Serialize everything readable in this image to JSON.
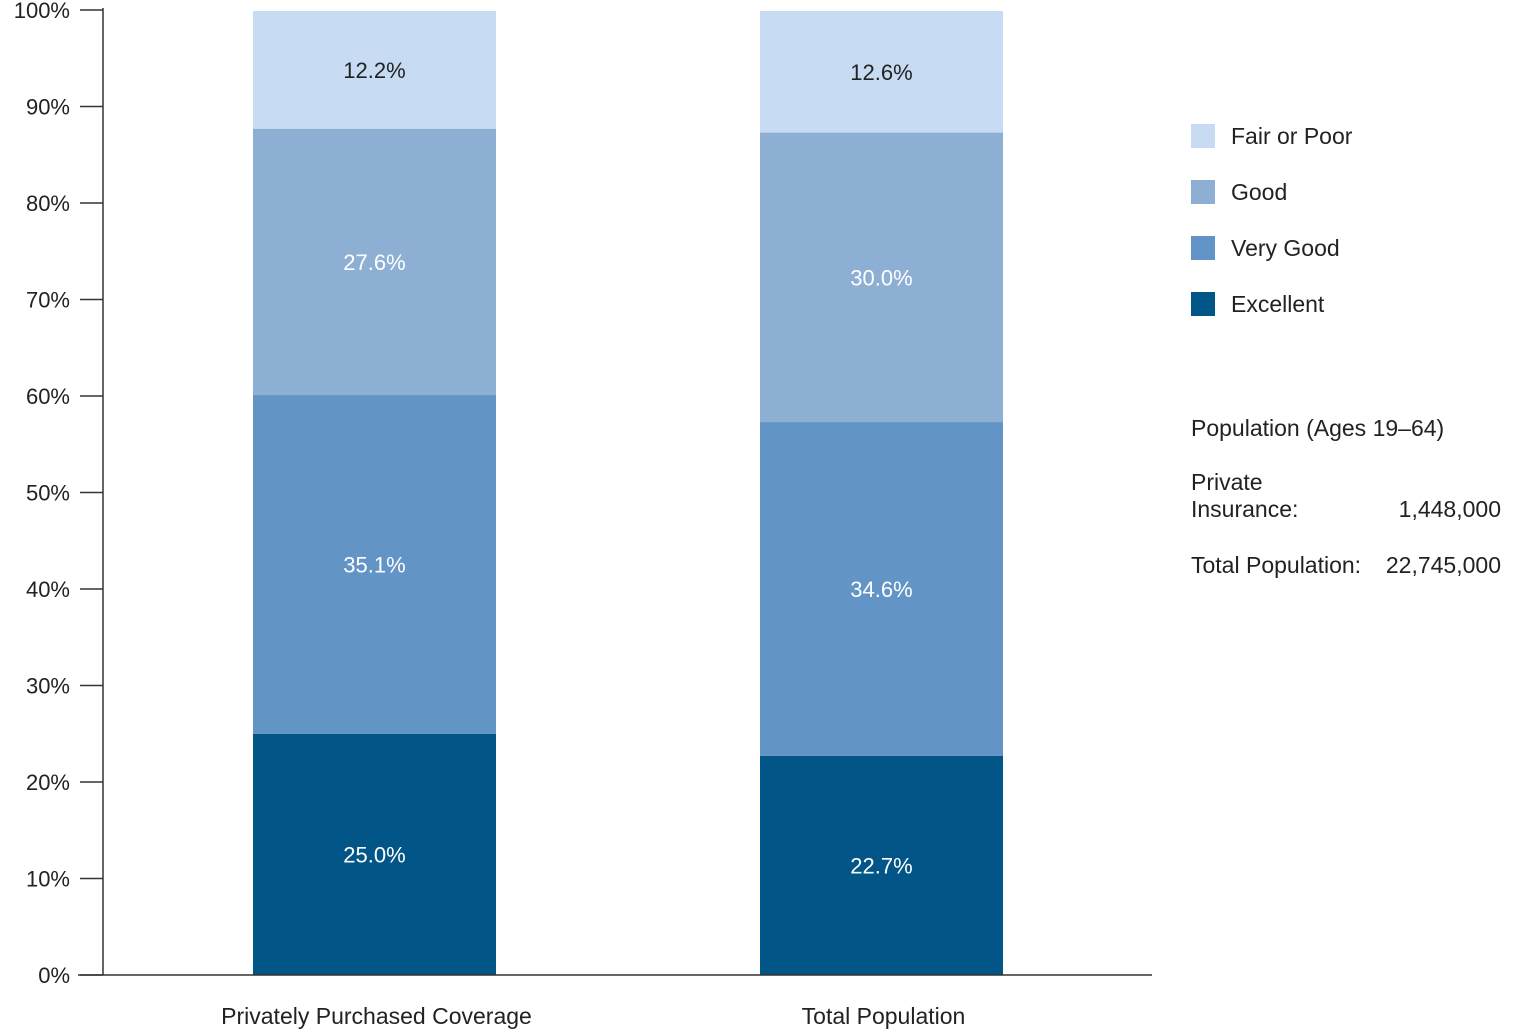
{
  "chart_data": {
    "type": "bar",
    "stacked": true,
    "categories": [
      "Privately Purchased Coverage",
      "Total Population"
    ],
    "series": [
      {
        "name": "Excellent",
        "values": [
          25.0,
          22.7
        ],
        "labels": [
          "25.0%",
          "22.7%"
        ],
        "color": "#025587"
      },
      {
        "name": "Very Good",
        "values": [
          35.1,
          34.6
        ],
        "labels": [
          "35.1%",
          "34.6%"
        ],
        "color": "#6294c6"
      },
      {
        "name": "Good",
        "values": [
          27.6,
          30.0
        ],
        "labels": [
          "27.6%",
          "30.0%"
        ],
        "color": "#8eafd4"
      },
      {
        "name": "Fair or Poor",
        "values": [
          12.2,
          12.6
        ],
        "labels": [
          "12.2%",
          "12.6%"
        ],
        "color": "#c7dcf2"
      }
    ],
    "y_ticks": [
      "0%",
      "10%",
      "20%",
      "30%",
      "40%",
      "50%",
      "60%",
      "70%",
      "80%",
      "90%",
      "100%"
    ],
    "ylim": [
      0,
      100
    ],
    "grid": false,
    "legend_position": "right"
  },
  "legend": {
    "items": [
      {
        "label": "Fair or Poor",
        "color": "#c7dcf2"
      },
      {
        "label": "Good",
        "color": "#8eafd4"
      },
      {
        "label": "Very Good",
        "color": "#6294c6"
      },
      {
        "label": "Excellent",
        "color": "#025587"
      }
    ]
  },
  "population": {
    "title": "Population (Ages 19–64)",
    "private_label_line1": "Private",
    "private_label_line2": "Insurance:",
    "private_value": "1,448,000",
    "total_label": "Total Population:",
    "total_value": "22,745,000"
  }
}
